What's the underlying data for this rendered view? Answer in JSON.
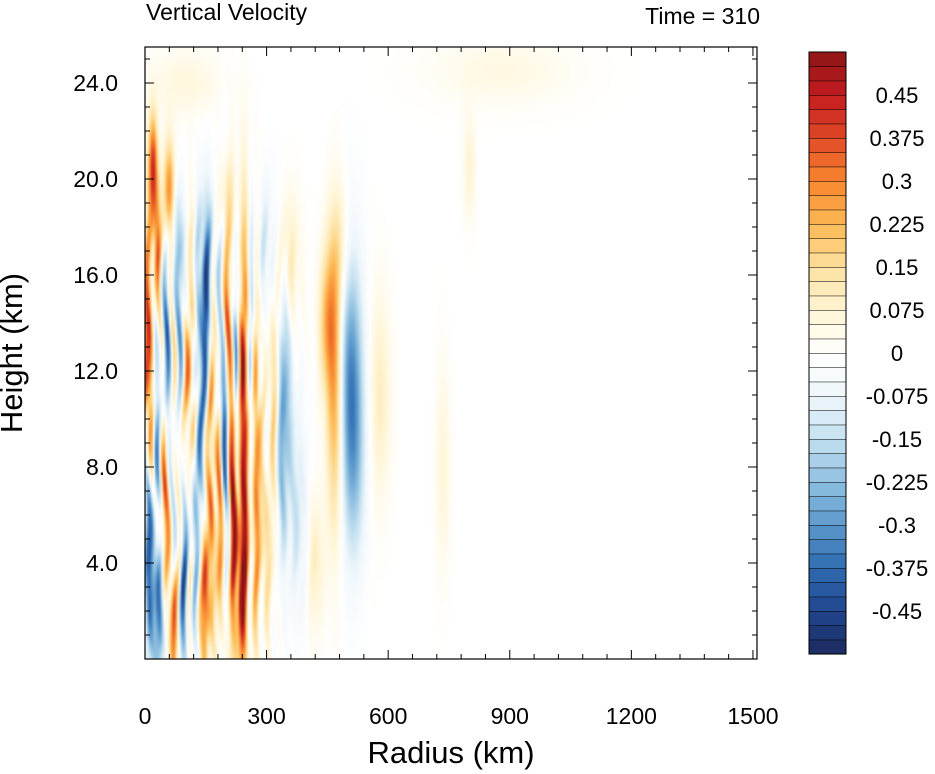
{
  "chart_data": {
    "type": "heatmap",
    "title": "Vertical Velocity",
    "subtitle": "Time = 310",
    "xlabel": "Radius (km)",
    "ylabel": "Height (km)",
    "xlim": [
      0,
      1510
    ],
    "ylim": [
      0,
      25.5
    ],
    "x_ticks": [
      0,
      300,
      600,
      900,
      1200,
      1500
    ],
    "x_tick_labels": [
      "0",
      "300",
      "600",
      "900",
      "1200",
      "1500"
    ],
    "y_ticks": [
      4,
      8,
      12,
      16,
      20,
      24
    ],
    "y_tick_labels": [
      "4.0",
      "8.0",
      "12.0",
      "16.0",
      "20.0",
      "24.0"
    ],
    "colorbar": {
      "levels": [
        -0.525,
        0.525
      ],
      "step": 0.025,
      "labels": [
        "0.45",
        "0.375",
        "0.3",
        "0.225",
        "0.15",
        "0.075",
        "0",
        "-0.075",
        "-0.15",
        "-0.225",
        "-0.3",
        "-0.375",
        "-0.45"
      ],
      "label_values": [
        0.45,
        0.375,
        0.3,
        0.225,
        0.15,
        0.075,
        0,
        -0.075,
        -0.15,
        -0.225,
        -0.3,
        -0.375,
        -0.45
      ],
      "palette": [
        "#1c2a5e",
        "#22468f",
        "#2f6bb0",
        "#5b99cc",
        "#8fc0e0",
        "#c3e0f0",
        "#eef6fb",
        "#ffffff",
        "#fff5d5",
        "#fde0a0",
        "#fdba55",
        "#f7862f",
        "#e04a26",
        "#c41c1f",
        "#8c1616"
      ]
    },
    "features": [
      {
        "r": 245,
        "z": 11,
        "sr": 10,
        "sz": 5,
        "w": 0.52
      },
      {
        "r": 218,
        "z": 8,
        "sr": 8,
        "sz": 5.5,
        "w": 0.5
      },
      {
        "r": 225,
        "z": 12.5,
        "sr": 7,
        "sz": 3.5,
        "w": -0.5
      },
      {
        "r": 262,
        "z": 12,
        "sr": 7,
        "sz": 4,
        "w": -0.45
      },
      {
        "r": 272,
        "z": 9.5,
        "sr": 8,
        "sz": 5,
        "w": 0.4
      },
      {
        "r": 195,
        "z": 10.5,
        "sr": 7,
        "sz": 5,
        "w": -0.4
      },
      {
        "r": 185,
        "z": 5,
        "sr": 8,
        "sz": 3,
        "w": 0.35
      },
      {
        "r": 165,
        "z": 9,
        "sr": 7,
        "sz": 4,
        "w": 0.3
      },
      {
        "r": 130,
        "z": 12,
        "sr": 8,
        "sz": 4,
        "w": -0.3
      },
      {
        "r": 115,
        "z": 11,
        "sr": 9,
        "sz": 4,
        "w": 0.35
      },
      {
        "r": 10,
        "z": 12,
        "sr": 10,
        "sz": 4,
        "w": 0.45
      },
      {
        "r": 25,
        "z": 9,
        "sr": 8,
        "sz": 4,
        "w": -0.3
      },
      {
        "r": 8,
        "z": 4,
        "sr": 8,
        "sz": 3,
        "w": -0.45
      },
      {
        "r": 35,
        "z": 2,
        "sr": 8,
        "sz": 2,
        "w": -0.4
      },
      {
        "r": 70,
        "z": 1.5,
        "sr": 7,
        "sz": 2,
        "w": 0.35
      },
      {
        "r": 95,
        "z": 3,
        "sr": 8,
        "sz": 2.5,
        "w": -0.3
      },
      {
        "r": 150,
        "z": 2.5,
        "sr": 7,
        "sz": 2,
        "w": 0.45
      },
      {
        "r": 240,
        "z": 3,
        "sr": 8,
        "sz": 2.5,
        "w": 0.45
      },
      {
        "r": 340,
        "z": 10.5,
        "sr": 15,
        "sz": 4,
        "w": -0.3
      },
      {
        "r": 320,
        "z": 11.5,
        "sr": 10,
        "sz": 3,
        "w": 0.25
      },
      {
        "r": 470,
        "z": 11,
        "sr": 15,
        "sz": 4,
        "w": 0.3
      },
      {
        "r": 505,
        "z": 11.5,
        "sr": 22,
        "sz": 4,
        "w": -0.33
      },
      {
        "r": 520,
        "z": 8,
        "sr": 18,
        "sz": 3,
        "w": -0.1
      },
      {
        "r": 580,
        "z": 11,
        "sr": 18,
        "sz": 3,
        "w": 0.1
      },
      {
        "r": 60,
        "z": 19.5,
        "sr": 10,
        "sz": 1.5,
        "w": 0.3
      },
      {
        "r": 20,
        "z": 20.5,
        "sr": 8,
        "sz": 1.5,
        "w": 0.4
      },
      {
        "r": 30,
        "z": 17.5,
        "sr": 7,
        "sz": 1.5,
        "w": 0.3
      },
      {
        "r": 80,
        "z": 18,
        "sr": 10,
        "sz": 1.5,
        "w": -0.15
      },
      {
        "r": 90,
        "z": 15,
        "sr": 8,
        "sz": 2,
        "w": -0.2
      },
      {
        "r": 160,
        "z": 17,
        "sr": 15,
        "sz": 2,
        "w": -0.15
      },
      {
        "r": 200,
        "z": 19,
        "sr": 15,
        "sz": 1.5,
        "w": 0.15
      },
      {
        "r": 300,
        "z": 17,
        "sr": 20,
        "sz": 2,
        "w": -0.12
      },
      {
        "r": 350,
        "z": 16.5,
        "sr": 20,
        "sz": 2,
        "w": 0.15
      },
      {
        "r": 480,
        "z": 17,
        "sr": 20,
        "sz": 2,
        "w": 0.12
      },
      {
        "r": 450,
        "z": 14,
        "sr": 15,
        "sz": 2,
        "w": 0.2
      },
      {
        "r": 300,
        "z": 5,
        "sr": 15,
        "sz": 2.5,
        "w": 0.15
      },
      {
        "r": 380,
        "z": 6,
        "sr": 15,
        "sz": 3,
        "w": -0.12
      },
      {
        "r": 200,
        "z": 14.5,
        "sr": 8,
        "sz": 2,
        "w": 0.4
      },
      {
        "r": 150,
        "z": 14,
        "sr": 8,
        "sz": 3,
        "w": -0.35
      },
      {
        "r": 55,
        "z": 13,
        "sr": 7,
        "sz": 2.5,
        "w": -0.25
      },
      {
        "r": 45,
        "z": 6,
        "sr": 8,
        "sz": 2.5,
        "w": 0.3
      },
      {
        "r": 120,
        "z": 6.5,
        "sr": 8,
        "sz": 2.5,
        "w": -0.3
      },
      {
        "r": 735,
        "z": 8,
        "sr": 12,
        "sz": 3,
        "w": 0.07
      },
      {
        "r": 420,
        "z": 4,
        "sr": 15,
        "sz": 2,
        "w": 0.1
      },
      {
        "r": 800,
        "z": 20.5,
        "sr": 10,
        "sz": 1.5,
        "w": 0.08
      },
      {
        "r": 880,
        "z": 24.5,
        "sr": 120,
        "sz": 1,
        "w": 0.05
      },
      {
        "r": 100,
        "z": 24,
        "sr": 60,
        "sz": 1,
        "w": 0.06
      }
    ]
  }
}
